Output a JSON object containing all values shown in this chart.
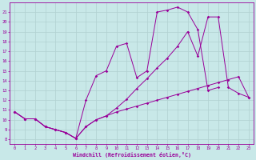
{
  "bg_color": "#c8e8e8",
  "line_color": "#990099",
  "grid_color": "#b0d0d0",
  "xlim": [
    -0.5,
    23.5
  ],
  "ylim": [
    7.5,
    22.0
  ],
  "xticks": [
    0,
    1,
    2,
    3,
    4,
    5,
    6,
    7,
    8,
    9,
    10,
    11,
    12,
    13,
    14,
    15,
    16,
    17,
    18,
    19,
    20,
    21,
    22,
    23
  ],
  "yticks": [
    8,
    9,
    10,
    11,
    12,
    13,
    14,
    15,
    16,
    17,
    18,
    19,
    20,
    21
  ],
  "xlabel": "Windchill (Refroidissement éolien,°C)",
  "line1_x": [
    0,
    1,
    2,
    3,
    4,
    5,
    6,
    7,
    8,
    9,
    10,
    11,
    12,
    13,
    14,
    15,
    16,
    17,
    18,
    19,
    20,
    21,
    22,
    23
  ],
  "line1_y": [
    10.8,
    10.1,
    10.1,
    9.3,
    9.0,
    8.7,
    8.1,
    9.3,
    10.0,
    10.4,
    10.8,
    11.1,
    11.4,
    11.7,
    12.0,
    12.3,
    12.6,
    12.9,
    13.2,
    13.5,
    13.8,
    14.1,
    14.4,
    12.3
  ],
  "line2_x": [
    0,
    1,
    2,
    3,
    4,
    5,
    6,
    7,
    8,
    9,
    10,
    11,
    12,
    13,
    14,
    15,
    16,
    17,
    18,
    19,
    20,
    21,
    22,
    23
  ],
  "line2_y": [
    10.8,
    10.1,
    10.1,
    9.3,
    9.0,
    8.7,
    8.1,
    12.0,
    14.5,
    15.0,
    17.5,
    17.8,
    14.3,
    15.0,
    21.0,
    21.2,
    21.5,
    21.0,
    19.2,
    13.0,
    13.3,
    null,
    null,
    null
  ],
  "line3_x": [
    0,
    1,
    2,
    3,
    4,
    5,
    6,
    7,
    8,
    9,
    10,
    11,
    12,
    13,
    14,
    15,
    16,
    17,
    18,
    19,
    20,
    21,
    22,
    23
  ],
  "line3_y": [
    10.8,
    10.1,
    10.1,
    9.3,
    9.0,
    8.7,
    8.1,
    9.3,
    10.0,
    10.4,
    11.2,
    12.1,
    13.2,
    14.2,
    15.3,
    16.3,
    17.5,
    19.0,
    16.5,
    20.5,
    20.5,
    13.3,
    12.7,
    12.3
  ]
}
